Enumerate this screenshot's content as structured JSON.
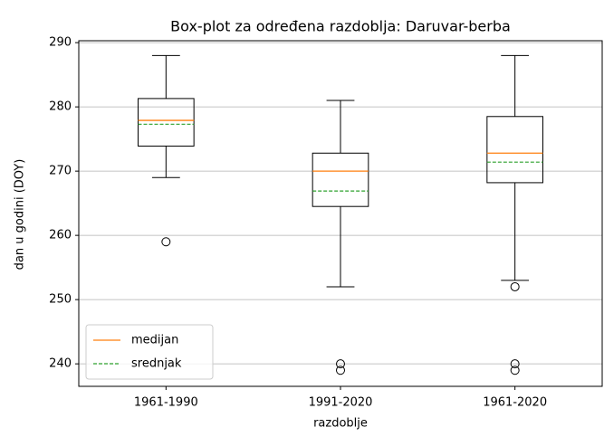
{
  "chart_data": {
    "type": "box",
    "title": "Box-plot za određena razdoblja: Daruvar-berba",
    "x_label": "razdoblje",
    "y_label": "dan u godini (DOY)",
    "categories": [
      "1961-1990",
      "1991-2020",
      "1961-2020"
    ],
    "whisker_low": [
      269,
      252,
      253
    ],
    "q1": [
      273.9,
      264.5,
      268.2
    ],
    "median": [
      277.9,
      270,
      272.8
    ],
    "q3": [
      281.3,
      272.8,
      278.5
    ],
    "whisker_high": [
      288,
      281,
      288
    ],
    "mean": [
      277.3,
      266.9,
      271.4
    ],
    "outliers": [
      [
        259
      ],
      [
        240,
        239
      ],
      [
        252,
        240,
        239
      ]
    ],
    "median_legend": {
      "name": "medijan",
      "color": "#ff7f0e"
    },
    "mean_legend": {
      "name": "srednjak",
      "color": "#2ca02c"
    },
    "box_color": "#000000",
    "ylim": [
      236.5,
      290.3
    ],
    "yticks": [
      240,
      250,
      260,
      270,
      280,
      290
    ],
    "grid": true,
    "legend_position": "lower left"
  }
}
